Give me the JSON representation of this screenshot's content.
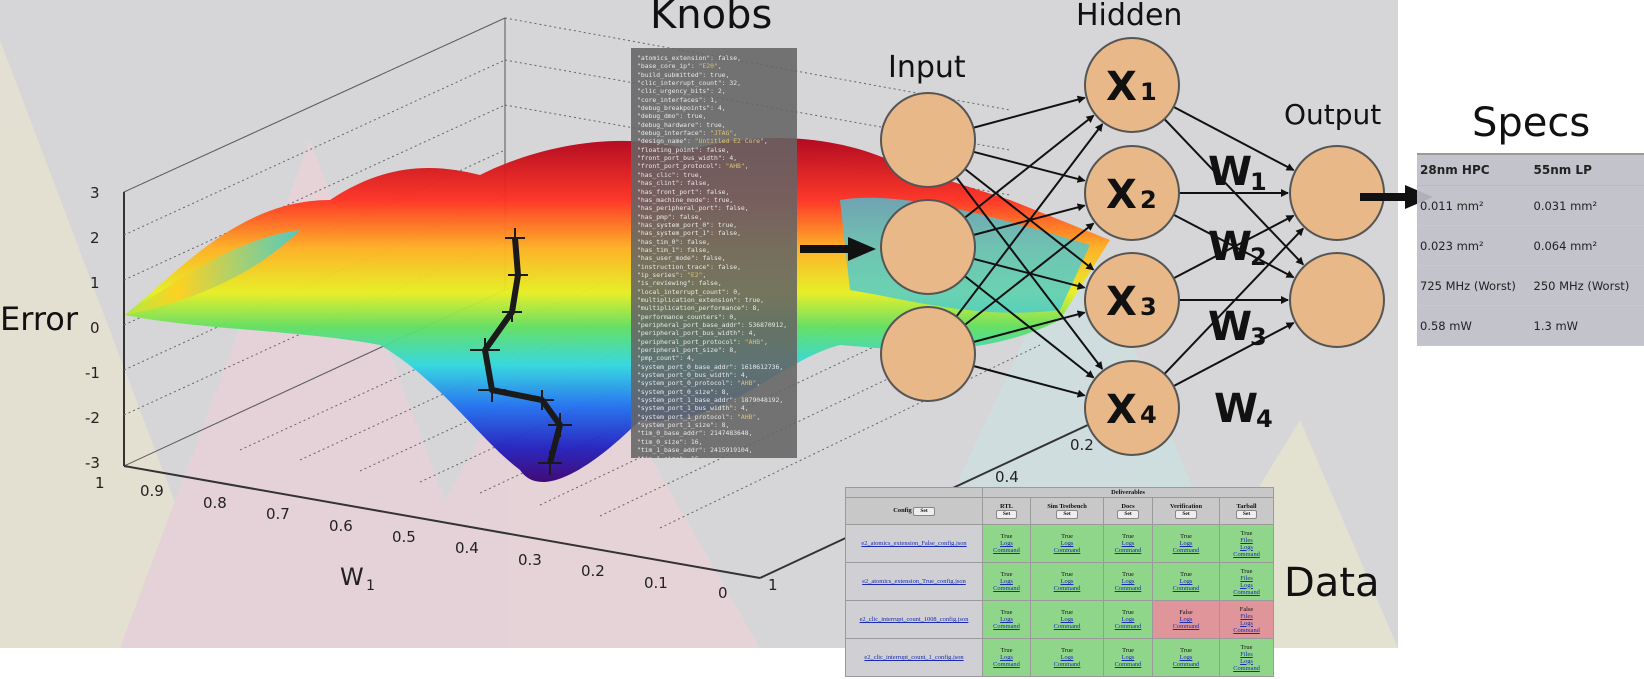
{
  "section_titles": {
    "knobs": "Knobs",
    "hidden": "Hidden",
    "input": "Input",
    "output": "Output",
    "specs": "Specs",
    "data": "Data"
  },
  "surface_plot": {
    "z_label": "Error",
    "x_label": "W",
    "x_label_sub": "1",
    "z_ticks": [
      "3",
      "2",
      "1",
      "0",
      "-1",
      "-2",
      "-3"
    ],
    "x_ticks": [
      "1",
      "0.9",
      "0.8",
      "0.7",
      "0.6",
      "0.5",
      "0.4",
      "0.3",
      "0.2",
      "0.1",
      "0"
    ],
    "y_ticks": [
      "0.2",
      "0.4",
      "1"
    ]
  },
  "network": {
    "hidden_nodes": [
      {
        "letter": "X",
        "sub": "1"
      },
      {
        "letter": "X",
        "sub": "2"
      },
      {
        "letter": "X",
        "sub": "3"
      },
      {
        "letter": "X",
        "sub": "4"
      }
    ],
    "weights": [
      {
        "letter": "W",
        "sub": "1"
      },
      {
        "letter": "W",
        "sub": "2"
      },
      {
        "letter": "W",
        "sub": "3"
      },
      {
        "letter": "W",
        "sub": "4"
      }
    ],
    "node_color": "#e8b888"
  },
  "knobs": [
    {
      "k": "atomics_extension",
      "v": "false"
    },
    {
      "k": "base_core_ip",
      "v": "\"E20\"",
      "str": true
    },
    {
      "k": "build_submitted",
      "v": "true"
    },
    {
      "k": "clic_interrupt_count",
      "v": "32"
    },
    {
      "k": "clic_urgency_bits",
      "v": "2"
    },
    {
      "k": "core_interfaces",
      "v": "1"
    },
    {
      "k": "debug_breakpoints",
      "v": "4"
    },
    {
      "k": "debug_dmo",
      "v": "true"
    },
    {
      "k": "debug_hardware",
      "v": "true"
    },
    {
      "k": "debug_interface",
      "v": "\"JTAG\"",
      "str": true
    },
    {
      "k": "design_name",
      "v": "\"Untitled E2 Core\"",
      "str": true
    },
    {
      "k": "floating_point",
      "v": "false"
    },
    {
      "k": "front_port_bus_width",
      "v": "4"
    },
    {
      "k": "front_port_protocol",
      "v": "\"AHB\"",
      "str": true
    },
    {
      "k": "has_clic",
      "v": "true"
    },
    {
      "k": "has_clint",
      "v": "false"
    },
    {
      "k": "has_front_port",
      "v": "false"
    },
    {
      "k": "has_machine_mode",
      "v": "true"
    },
    {
      "k": "has_peripheral_port",
      "v": "false"
    },
    {
      "k": "has_pmp",
      "v": "false"
    },
    {
      "k": "has_system_port_0",
      "v": "true"
    },
    {
      "k": "has_system_port_1",
      "v": "false"
    },
    {
      "k": "has_tim_0",
      "v": "false"
    },
    {
      "k": "has_tim_1",
      "v": "false"
    },
    {
      "k": "has_user_mode",
      "v": "false"
    },
    {
      "k": "instruction_trace",
      "v": "false"
    },
    {
      "k": "ip_series",
      "v": "\"E2\"",
      "str": true
    },
    {
      "k": "is_reviewing",
      "v": "false"
    },
    {
      "k": "local_interrupt_count",
      "v": "0"
    },
    {
      "k": "multiplication_extension",
      "v": "true"
    },
    {
      "k": "multiplication_performance",
      "v": "8"
    },
    {
      "k": "performance_counters",
      "v": "0"
    },
    {
      "k": "peripheral_port_base_addr",
      "v": "536870912"
    },
    {
      "k": "peripheral_port_bus_width",
      "v": "4"
    },
    {
      "k": "peripheral_port_protocol",
      "v": "\"AHB\"",
      "str": true
    },
    {
      "k": "peripheral_port_size",
      "v": "8"
    },
    {
      "k": "pmp_count",
      "v": "4"
    },
    {
      "k": "system_port_0_base_addr",
      "v": "1610612736"
    },
    {
      "k": "system_port_0_bus_width",
      "v": "4"
    },
    {
      "k": "system_port_0_protocol",
      "v": "\"AHB\"",
      "str": true
    },
    {
      "k": "system_port_0_size",
      "v": "8"
    },
    {
      "k": "system_port_1_base_addr",
      "v": "1879048192"
    },
    {
      "k": "system_port_1_bus_width",
      "v": "4"
    },
    {
      "k": "system_port_1_protocol",
      "v": "\"AHB\"",
      "str": true
    },
    {
      "k": "system_port_1_size",
      "v": "8"
    },
    {
      "k": "tim_0_base_addr",
      "v": "2147483648"
    },
    {
      "k": "tim_0_size",
      "v": "16"
    },
    {
      "k": "tim_1_base_addr",
      "v": "2415919104"
    },
    {
      "k": "tim_1_size",
      "v": "16"
    }
  ],
  "specs": {
    "headers": [
      "28nm HPC",
      "55nm LP"
    ],
    "rows": [
      [
        "0.011 mm²",
        "0.031 mm²"
      ],
      [
        "0.023 mm²",
        "0.064 mm²"
      ],
      [
        "725 MHz (Worst)",
        "250 MHz (Worst)"
      ],
      [
        "0.58 mW",
        "1.3 mW"
      ]
    ]
  },
  "deliverables_table": {
    "group_header": "Deliverables",
    "config_header": "Config",
    "set_label": "Set",
    "columns": [
      "RTL",
      "Sim Testbench",
      "Docs",
      "Verification",
      "Tarball"
    ],
    "rows": [
      {
        "config": "e2_atomics_extension_False_config.json",
        "cells": [
          {
            "status": "True",
            "links": [
              "Logs",
              "Command"
            ]
          },
          {
            "status": "True",
            "links": [
              "Logs",
              "Command"
            ]
          },
          {
            "status": "True",
            "links": [
              "Logs",
              "Command"
            ]
          },
          {
            "status": "True",
            "links": [
              "Logs",
              "Command"
            ]
          },
          {
            "status": "True",
            "links": [
              "Files",
              "Logs",
              "Command"
            ]
          }
        ]
      },
      {
        "config": "e2_atomics_extension_True_config.json",
        "cells": [
          {
            "status": "True",
            "links": [
              "Logs",
              "Command"
            ]
          },
          {
            "status": "True",
            "links": [
              "Logs",
              "Command"
            ]
          },
          {
            "status": "True",
            "links": [
              "Logs",
              "Command"
            ]
          },
          {
            "status": "True",
            "links": [
              "Logs",
              "Command"
            ]
          },
          {
            "status": "True",
            "links": [
              "Files",
              "Logs",
              "Command"
            ]
          }
        ]
      },
      {
        "config": "e2_clic_interrupt_count_1008_config.json",
        "cells": [
          {
            "status": "True",
            "links": [
              "Logs",
              "Command"
            ]
          },
          {
            "status": "True",
            "links": [
              "Logs",
              "Command"
            ]
          },
          {
            "status": "True",
            "links": [
              "Logs",
              "Command"
            ]
          },
          {
            "status": "False",
            "links": [
              "Logs",
              "Command"
            ]
          },
          {
            "status": "False",
            "links": [
              "Files",
              "Logs",
              "Command"
            ]
          }
        ]
      },
      {
        "config": "e2_clic_interrupt_count_1_config.json",
        "cells": [
          {
            "status": "True",
            "links": [
              "Logs",
              "Command"
            ]
          },
          {
            "status": "True",
            "links": [
              "Logs",
              "Command"
            ]
          },
          {
            "status": "True",
            "links": [
              "Logs",
              "Command"
            ]
          },
          {
            "status": "True",
            "links": [
              "Logs",
              "Command"
            ]
          },
          {
            "status": "True",
            "links": [
              "Files",
              "Logs",
              "Command"
            ]
          }
        ]
      }
    ],
    "colors": {
      "ok": "#8fd68a",
      "bad": "#e0959a"
    }
  }
}
